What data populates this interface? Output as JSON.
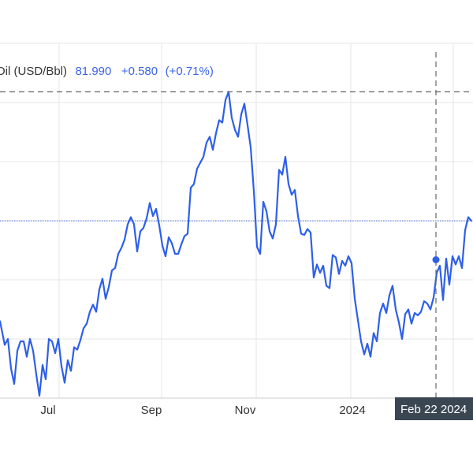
{
  "chart_data": {
    "type": "line",
    "legend": {
      "series_label": "Oil (USD/Bbl)",
      "price": "81.990",
      "change": "+0.580",
      "change_pct": "(+0.71%)"
    },
    "x_ticks": [
      "Jul",
      "Sep",
      "Nov",
      "2024"
    ],
    "crosshair_label": "Feb 22 2024",
    "reference_level": 81.99,
    "peak_level": 92.9,
    "crosshair_value": 78.7,
    "y_range": [
      67,
      97
    ],
    "x_range": [
      0,
      300
    ],
    "grid": true,
    "series": [
      {
        "color": "#2e5fe8",
        "x": [
          0,
          3,
          5,
          7,
          9,
          11,
          13,
          15,
          17,
          19,
          21,
          23,
          25,
          27,
          29,
          31,
          33,
          35,
          37,
          39,
          41,
          43,
          45,
          47,
          49,
          51,
          53,
          55,
          57,
          59,
          61,
          63,
          65,
          67,
          69,
          71,
          73,
          75,
          77,
          79,
          81,
          83,
          85,
          87,
          89,
          91,
          93,
          95,
          97,
          99,
          101,
          103,
          105,
          107,
          109,
          111,
          113,
          115,
          117,
          119,
          121,
          123,
          125,
          127,
          129,
          131,
          133,
          135,
          137,
          139,
          141,
          143,
          145,
          147,
          149,
          151,
          153,
          155,
          157,
          159,
          161,
          163,
          165,
          167,
          169,
          171,
          173,
          175,
          177,
          179,
          181,
          183,
          185,
          187,
          189,
          191,
          193,
          195,
          197,
          199,
          201,
          203,
          205,
          207,
          209,
          211,
          213,
          215,
          217,
          219,
          221,
          223,
          225,
          227,
          229,
          231,
          233,
          235,
          237,
          239,
          241,
          243,
          245,
          247,
          249,
          251,
          253,
          255,
          257,
          259,
          261,
          263,
          265,
          267,
          269,
          271,
          273,
          275,
          277,
          279,
          281,
          283,
          285,
          287,
          289,
          291,
          293,
          295,
          297,
          299
        ],
        "y": [
          73.5,
          71.5,
          72.0,
          69.5,
          68.2,
          71.0,
          71.8,
          71.8,
          70.5,
          72.0,
          71.0,
          69.0,
          67.2,
          69.8,
          68.6,
          72.0,
          71.8,
          70.8,
          72.0,
          69.7,
          68.3,
          70.2,
          69.3,
          71.3,
          71.1,
          71.9,
          72.9,
          73.3,
          74.3,
          74.9,
          74.3,
          76.2,
          77.1,
          75.4,
          76.4,
          77.8,
          78.0,
          79.2,
          79.7,
          80.4,
          81.7,
          82.3,
          81.7,
          79.4,
          81.1,
          81.4,
          82.2,
          83.5,
          82.4,
          83.0,
          81.6,
          79.9,
          79.0,
          80.6,
          80.1,
          79.2,
          79.2,
          80.0,
          80.7,
          80.9,
          84.8,
          85.1,
          86.4,
          86.9,
          87.4,
          88.6,
          89.1,
          88.0,
          89.4,
          90.5,
          90.3,
          92.2,
          92.9,
          90.7,
          89.7,
          89.1,
          91.0,
          91.9,
          90.1,
          88.2,
          84.5,
          79.8,
          79.2,
          83.6,
          82.8,
          81.1,
          80.5,
          81.7,
          86.3,
          85.9,
          87.4,
          85.1,
          84.2,
          84.6,
          82.4,
          80.9,
          80.8,
          81.3,
          81.0,
          77.2,
          78.3,
          77.6,
          78.2,
          76.5,
          76.3,
          79.1,
          78.9,
          77.5,
          78.6,
          78.2,
          79.0,
          78.4,
          75.4,
          73.6,
          71.8,
          70.7,
          71.6,
          70.5,
          72.5,
          71.8,
          74.2,
          75.0,
          74.2,
          75.7,
          76.5,
          74.5,
          73.4,
          72.0,
          74.1,
          74.5,
          73.3,
          74.2,
          74.0,
          74.3,
          75.2,
          75.0,
          74.5,
          75.5,
          77.6,
          78.2,
          75.3,
          78.8,
          76.6,
          79.0,
          78.3,
          79.0,
          78.0,
          81.2,
          82.3,
          81.99
        ]
      }
    ]
  }
}
